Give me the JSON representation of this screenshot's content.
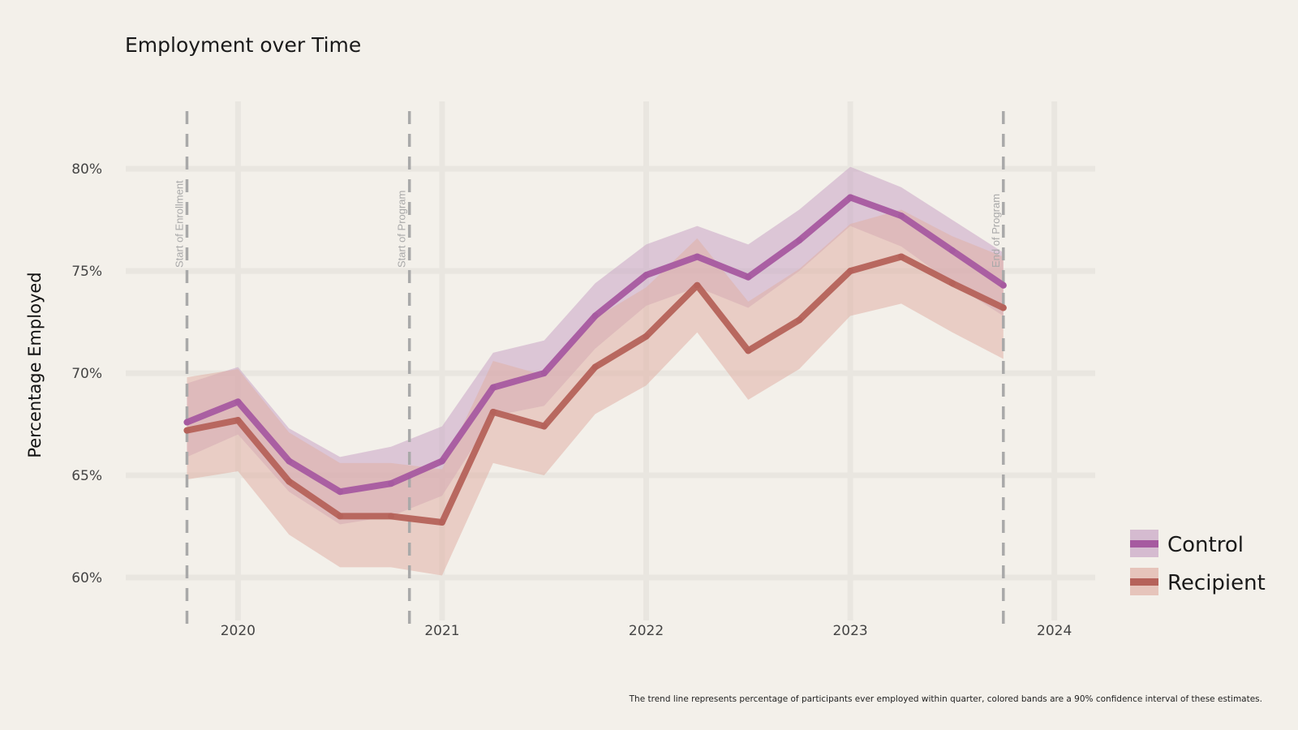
{
  "chart_data": {
    "type": "line",
    "title": "Employment over Time",
    "xlabel": "",
    "ylabel": "Percentage Employed",
    "xlim": [
      2019.45,
      2024.2
    ],
    "ylim": [
      57.5,
      83.3
    ],
    "x_ticks": [
      2020,
      2021,
      2022,
      2023,
      2024
    ],
    "x_tick_labels": [
      "2020",
      "2021",
      "2022",
      "2023",
      "2024"
    ],
    "y_ticks": [
      60,
      65,
      70,
      75,
      80
    ],
    "y_tick_labels": [
      "60%",
      "65%",
      "70%",
      "75%",
      "80%"
    ],
    "grid": true,
    "x": [
      2019.75,
      2020.0,
      2020.25,
      2020.5,
      2020.75,
      2021.0,
      2021.25,
      2021.5,
      2021.75,
      2022.0,
      2022.25,
      2022.5,
      2022.75,
      2023.0,
      2023.25,
      2023.5,
      2023.75
    ],
    "series": [
      {
        "name": "Control",
        "color": "#a65aa0",
        "band_color": "#c8a4c4",
        "values": [
          67.6,
          68.6,
          65.7,
          64.2,
          64.6,
          65.7,
          69.3,
          70.0,
          72.8,
          74.8,
          75.7,
          74.7,
          76.5,
          78.6,
          77.7,
          76.0,
          74.3
        ],
        "lower": [
          65.9,
          67.0,
          64.2,
          62.6,
          63.0,
          64.0,
          67.9,
          68.4,
          71.2,
          73.3,
          74.2,
          73.2,
          75.0,
          77.2,
          76.2,
          74.4,
          72.8
        ],
        "upper": [
          69.5,
          70.3,
          67.3,
          65.9,
          66.4,
          67.4,
          71.0,
          71.6,
          74.4,
          76.3,
          77.2,
          76.3,
          78.0,
          80.1,
          79.1,
          77.5,
          75.9
        ]
      },
      {
        "name": "Recipient",
        "color": "#b5625a",
        "band_color": "#e0b0a6",
        "values": [
          67.2,
          67.7,
          64.7,
          63.0,
          63.0,
          62.7,
          68.1,
          67.4,
          70.3,
          71.8,
          74.3,
          71.1,
          72.6,
          75.0,
          75.7,
          74.4,
          73.2
        ],
        "lower": [
          64.8,
          65.2,
          62.1,
          60.5,
          60.5,
          60.1,
          65.6,
          65.0,
          68.0,
          69.4,
          72.0,
          68.7,
          70.2,
          72.8,
          73.4,
          72.0,
          70.7
        ],
        "upper": [
          69.8,
          70.2,
          67.1,
          65.6,
          65.6,
          65.3,
          70.6,
          69.9,
          72.7,
          74.2,
          76.6,
          73.5,
          75.1,
          77.3,
          78.0,
          76.7,
          75.7
        ]
      }
    ],
    "reference_lines": [
      {
        "x": 2019.75,
        "label": "Start of Enrollment"
      },
      {
        "x": 2020.84,
        "label": "Start of Program"
      },
      {
        "x": 2023.75,
        "label": "End of Program"
      }
    ],
    "legend_position": "right",
    "caption": "The trend line represents percentage of participants ever employed within quarter, colored bands are a 90% confidence interval of these estimates."
  }
}
